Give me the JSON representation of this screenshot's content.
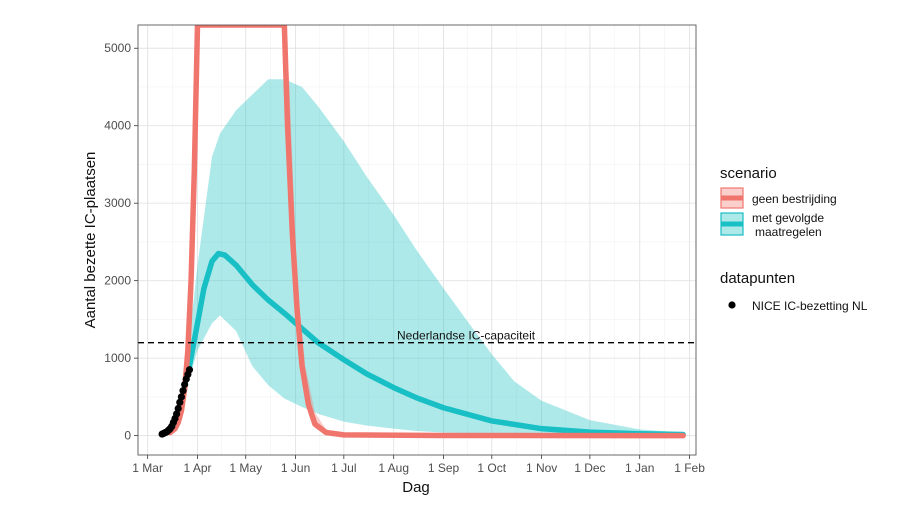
{
  "chart_data": {
    "type": "line",
    "title": "",
    "xlabel": "Dag",
    "ylabel": "Aantal bezette IC-plaatsen",
    "x_ticks": [
      "1 Mar",
      "1 Apr",
      "1 May",
      "1 Jun",
      "1 Jul",
      "1 Aug",
      "1 Sep",
      "1 Oct",
      "1 Nov",
      "1 Dec",
      "1 Jan",
      "1 Feb"
    ],
    "x_tick_dates": [
      "2020-03-01",
      "2020-04-01",
      "2020-05-01",
      "2020-06-01",
      "2020-07-01",
      "2020-08-01",
      "2020-09-01",
      "2020-10-01",
      "2020-11-01",
      "2020-12-01",
      "2021-01-01",
      "2021-02-01"
    ],
    "y_ticks": [
      0,
      1000,
      2000,
      3000,
      4000,
      5000
    ],
    "xlim": [
      "2020-02-24",
      "2021-02-05"
    ],
    "ylim": [
      -250,
      5300
    ],
    "grid": true,
    "legend_position": "right",
    "legend": {
      "scenario_title": "scenario",
      "scenario_items": [
        {
          "label": "geen bestrijding",
          "color": "#F0766D"
        },
        {
          "label_line1": "met gevolgde",
          "label_line2": "maatregelen",
          "color": "#18BFC4"
        }
      ],
      "data_title": "datapunten",
      "data_items": [
        {
          "label": "NICE IC-bezetting NL",
          "color": "#000000"
        }
      ]
    },
    "annotations": [
      {
        "type": "hline",
        "y": 1200,
        "style": "dashed",
        "label": "Nederlandse IC-capaciteit",
        "label_x": "2020-09-15"
      }
    ],
    "series": [
      {
        "name": "geen bestrijding",
        "color": "#F0766D",
        "points": [
          {
            "x": "2020-03-15",
            "y": 40
          },
          {
            "x": "2020-03-18",
            "y": 90
          },
          {
            "x": "2020-03-20",
            "y": 170
          },
          {
            "x": "2020-03-22",
            "y": 320
          },
          {
            "x": "2020-03-24",
            "y": 600
          },
          {
            "x": "2020-03-26",
            "y": 1100
          },
          {
            "x": "2020-03-28",
            "y": 2000
          },
          {
            "x": "2020-03-30",
            "y": 3400
          },
          {
            "x": "2020-04-01",
            "y": 5300
          },
          {
            "x": "2020-05-25",
            "y": 5300
          },
          {
            "x": "2020-05-27",
            "y": 4000
          },
          {
            "x": "2020-05-30",
            "y": 2600
          },
          {
            "x": "2020-06-02",
            "y": 1600
          },
          {
            "x": "2020-06-05",
            "y": 900
          },
          {
            "x": "2020-06-09",
            "y": 400
          },
          {
            "x": "2020-06-13",
            "y": 150
          },
          {
            "x": "2020-06-20",
            "y": 40
          },
          {
            "x": "2020-07-01",
            "y": 10
          },
          {
            "x": "2020-09-01",
            "y": 2
          },
          {
            "x": "2021-01-28",
            "y": 0
          }
        ],
        "band": [
          {
            "x": "2020-05-25",
            "low": 5300,
            "high": 5300
          },
          {
            "x": "2020-05-28",
            "low": 3700,
            "high": 4600
          },
          {
            "x": "2020-06-02",
            "low": 1300,
            "high": 2000
          },
          {
            "x": "2020-06-07",
            "low": 450,
            "high": 900
          },
          {
            "x": "2020-06-13",
            "low": 100,
            "high": 300
          },
          {
            "x": "2020-06-20",
            "low": 15,
            "high": 80
          },
          {
            "x": "2020-07-01",
            "low": 0,
            "high": 20
          }
        ]
      },
      {
        "name": "met gevolgde maatregelen",
        "color": "#18BFC4",
        "points": [
          {
            "x": "2020-03-27",
            "y": 900
          },
          {
            "x": "2020-04-01",
            "y": 1450
          },
          {
            "x": "2020-04-05",
            "y": 1900
          },
          {
            "x": "2020-04-10",
            "y": 2250
          },
          {
            "x": "2020-04-14",
            "y": 2350
          },
          {
            "x": "2020-04-18",
            "y": 2330
          },
          {
            "x": "2020-04-25",
            "y": 2200
          },
          {
            "x": "2020-05-05",
            "y": 1950
          },
          {
            "x": "2020-05-15",
            "y": 1750
          },
          {
            "x": "2020-05-25",
            "y": 1580
          },
          {
            "x": "2020-06-05",
            "y": 1380
          },
          {
            "x": "2020-06-15",
            "y": 1200
          },
          {
            "x": "2020-07-01",
            "y": 980
          },
          {
            "x": "2020-07-15",
            "y": 800
          },
          {
            "x": "2020-08-01",
            "y": 620
          },
          {
            "x": "2020-08-15",
            "y": 490
          },
          {
            "x": "2020-09-01",
            "y": 360
          },
          {
            "x": "2020-10-01",
            "y": 190
          },
          {
            "x": "2020-11-01",
            "y": 90
          },
          {
            "x": "2020-12-01",
            "y": 45
          },
          {
            "x": "2021-01-01",
            "y": 25
          },
          {
            "x": "2021-01-28",
            "y": 15
          }
        ],
        "band": [
          {
            "x": "2020-03-25",
            "low": 600,
            "high": 900
          },
          {
            "x": "2020-04-01",
            "low": 1100,
            "high": 2200
          },
          {
            "x": "2020-04-10",
            "low": 1450,
            "high": 3600
          },
          {
            "x": "2020-04-15",
            "low": 1550,
            "high": 3900
          },
          {
            "x": "2020-04-25",
            "low": 1350,
            "high": 4200
          },
          {
            "x": "2020-05-05",
            "low": 900,
            "high": 4400
          },
          {
            "x": "2020-05-15",
            "low": 650,
            "high": 4600
          },
          {
            "x": "2020-05-25",
            "low": 480,
            "high": 4600
          },
          {
            "x": "2020-06-05",
            "low": 370,
            "high": 4500
          },
          {
            "x": "2020-06-15",
            "low": 280,
            "high": 4250
          },
          {
            "x": "2020-07-01",
            "low": 180,
            "high": 3800
          },
          {
            "x": "2020-07-15",
            "low": 130,
            "high": 3350
          },
          {
            "x": "2020-08-01",
            "low": 90,
            "high": 2850
          },
          {
            "x": "2020-08-15",
            "low": 60,
            "high": 2400
          },
          {
            "x": "2020-09-01",
            "low": 40,
            "high": 1900
          },
          {
            "x": "2020-09-15",
            "low": 30,
            "high": 1500
          },
          {
            "x": "2020-10-01",
            "low": 20,
            "high": 1050
          },
          {
            "x": "2020-10-15",
            "low": 15,
            "high": 700
          },
          {
            "x": "2020-11-01",
            "low": 10,
            "high": 450
          },
          {
            "x": "2020-12-01",
            "low": 5,
            "high": 200
          },
          {
            "x": "2021-01-01",
            "low": 0,
            "high": 80
          },
          {
            "x": "2021-01-28",
            "low": 0,
            "high": 40
          }
        ]
      }
    ],
    "observed": {
      "name": "NICE IC-bezetting NL",
      "color": "#000000",
      "points": [
        {
          "x": "2020-03-10",
          "y": 20
        },
        {
          "x": "2020-03-11",
          "y": 30
        },
        {
          "x": "2020-03-12",
          "y": 40
        },
        {
          "x": "2020-03-13",
          "y": 50
        },
        {
          "x": "2020-03-14",
          "y": 70
        },
        {
          "x": "2020-03-15",
          "y": 90
        },
        {
          "x": "2020-03-16",
          "y": 120
        },
        {
          "x": "2020-03-17",
          "y": 170
        },
        {
          "x": "2020-03-18",
          "y": 220
        },
        {
          "x": "2020-03-19",
          "y": 280
        },
        {
          "x": "2020-03-20",
          "y": 350
        },
        {
          "x": "2020-03-21",
          "y": 430
        },
        {
          "x": "2020-03-22",
          "y": 500
        },
        {
          "x": "2020-03-23",
          "y": 580
        },
        {
          "x": "2020-03-24",
          "y": 660
        },
        {
          "x": "2020-03-25",
          "y": 730
        },
        {
          "x": "2020-03-26",
          "y": 790
        },
        {
          "x": "2020-03-27",
          "y": 850
        }
      ]
    }
  }
}
